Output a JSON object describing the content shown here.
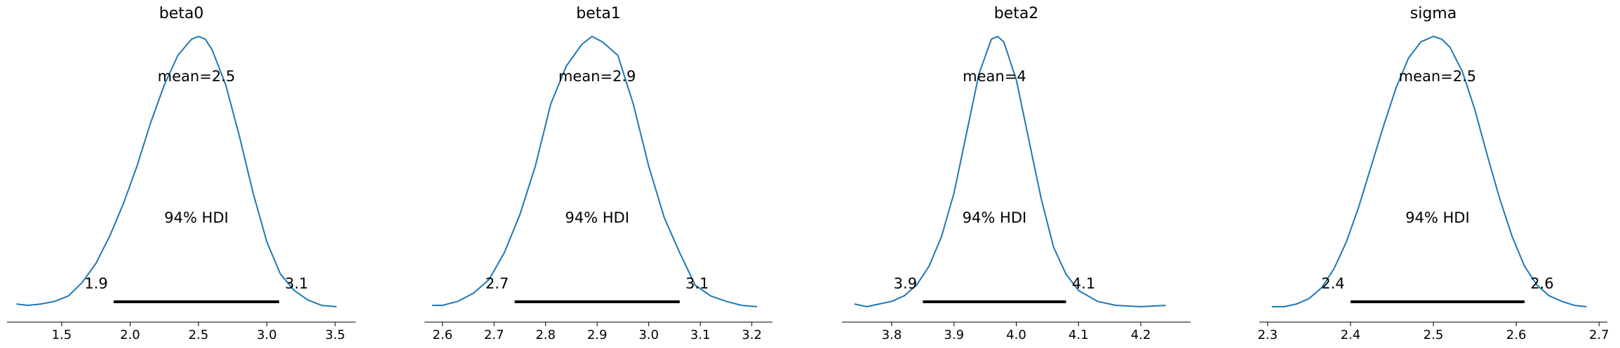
{
  "chart_data": [
    {
      "type": "line",
      "title": "beta0",
      "xlim": [
        1.1,
        3.65
      ],
      "xticks": [
        "1.5",
        "2.0",
        "2.5",
        "3.0",
        "3.5"
      ],
      "color": "#1f77b4",
      "x": [
        1.17,
        1.25,
        1.35,
        1.45,
        1.55,
        1.65,
        1.75,
        1.85,
        1.95,
        2.05,
        2.15,
        2.25,
        2.35,
        2.45,
        2.5,
        2.55,
        2.6,
        2.7,
        2.8,
        2.9,
        3.0,
        3.1,
        3.2,
        3.3,
        3.4,
        3.51
      ],
      "y": [
        0.01,
        0.005,
        0.01,
        0.02,
        0.04,
        0.09,
        0.16,
        0.26,
        0.38,
        0.52,
        0.68,
        0.82,
        0.93,
        0.99,
        1.0,
        0.99,
        0.95,
        0.82,
        0.63,
        0.42,
        0.24,
        0.12,
        0.06,
        0.025,
        0.005,
        0.0
      ],
      "mean_label": "mean=2.5",
      "hdi_label": "94% HDI",
      "hdi": [
        1.88,
        3.09
      ],
      "hdi_low_label": "1.9",
      "hdi_high_label": "3.1"
    },
    {
      "type": "line",
      "title": "beta1",
      "xlim": [
        2.565,
        3.24
      ],
      "xticks": [
        "2.6",
        "2.7",
        "2.8",
        "2.9",
        "3.0",
        "3.1",
        "3.2"
      ],
      "color": "#1f77b4",
      "x": [
        2.58,
        2.6,
        2.63,
        2.66,
        2.69,
        2.72,
        2.75,
        2.78,
        2.81,
        2.84,
        2.87,
        2.89,
        2.91,
        2.94,
        2.97,
        3.0,
        3.03,
        3.06,
        3.09,
        3.12,
        3.15,
        3.18,
        3.21
      ],
      "y": [
        0.005,
        0.005,
        0.02,
        0.05,
        0.1,
        0.2,
        0.34,
        0.52,
        0.75,
        0.89,
        0.97,
        1.0,
        0.98,
        0.93,
        0.75,
        0.52,
        0.33,
        0.2,
        0.08,
        0.04,
        0.02,
        0.005,
        0.0
      ],
      "mean_label": "mean=2.9",
      "hdi_label": "94% HDI",
      "hdi": [
        2.74,
        3.06
      ],
      "hdi_low_label": "2.7",
      "hdi_high_label": "3.1"
    },
    {
      "type": "line",
      "title": "beta2",
      "xlim": [
        3.72,
        4.28
      ],
      "xticks": [
        "3.8",
        "3.9",
        "4.0",
        "4.1",
        "4.2"
      ],
      "color": "#1f77b4",
      "x": [
        3.74,
        3.76,
        3.78,
        3.8,
        3.82,
        3.84,
        3.86,
        3.88,
        3.9,
        3.92,
        3.94,
        3.96,
        3.97,
        3.98,
        4.0,
        4.02,
        4.04,
        4.06,
        4.08,
        4.1,
        4.13,
        4.16,
        4.2,
        4.24
      ],
      "y": [
        0.01,
        0.0,
        0.01,
        0.02,
        0.04,
        0.08,
        0.15,
        0.26,
        0.42,
        0.64,
        0.86,
        0.99,
        1.0,
        0.98,
        0.84,
        0.62,
        0.4,
        0.22,
        0.12,
        0.06,
        0.02,
        0.005,
        0.0,
        0.005
      ],
      "mean_label": "mean=4",
      "hdi_label": "94% HDI",
      "hdi": [
        3.85,
        4.08
      ],
      "hdi_low_label": "3.9",
      "hdi_high_label": "4.1"
    },
    {
      "type": "line",
      "title": "sigma",
      "xlim": [
        2.29,
        2.71
      ],
      "xticks": [
        "2.3",
        "2.4",
        "2.5",
        "2.6",
        "2.7"
      ],
      "color": "#1f77b4",
      "x": [
        2.305,
        2.32,
        2.335,
        2.35,
        2.365,
        2.38,
        2.395,
        2.41,
        2.425,
        2.44,
        2.455,
        2.47,
        2.485,
        2.5,
        2.51,
        2.52,
        2.535,
        2.55,
        2.565,
        2.58,
        2.595,
        2.61,
        2.625,
        2.64,
        2.655,
        2.67,
        2.685
      ],
      "y": [
        0.0,
        0.0,
        0.01,
        0.03,
        0.07,
        0.14,
        0.24,
        0.37,
        0.52,
        0.67,
        0.81,
        0.92,
        0.98,
        1.0,
        0.99,
        0.96,
        0.87,
        0.73,
        0.56,
        0.4,
        0.26,
        0.15,
        0.08,
        0.04,
        0.02,
        0.005,
        0.0
      ],
      "mean_label": "mean=2.5",
      "hdi_label": "94% HDI",
      "hdi": [
        2.4,
        2.61
      ],
      "hdi_low_label": "2.4",
      "hdi_high_label": "2.6"
    }
  ]
}
